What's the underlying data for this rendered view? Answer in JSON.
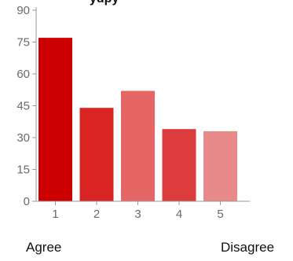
{
  "title_fragment": "ydpy",
  "captions": {
    "left": "Agree",
    "right": "Disagree"
  },
  "chart_data": {
    "type": "bar",
    "title": "",
    "xlabel": "",
    "ylabel": "",
    "categories": [
      "1",
      "2",
      "3",
      "4",
      "5"
    ],
    "values": [
      77,
      44,
      52,
      34,
      33
    ],
    "ylim": [
      0,
      90
    ],
    "yticks": [
      0,
      15,
      30,
      45,
      60,
      75,
      90
    ],
    "grid": false,
    "legend": "none",
    "bar_colors": [
      "#cc0000",
      "#d92424",
      "#e66666",
      "#dc3c3c",
      "#e88a8a"
    ]
  }
}
